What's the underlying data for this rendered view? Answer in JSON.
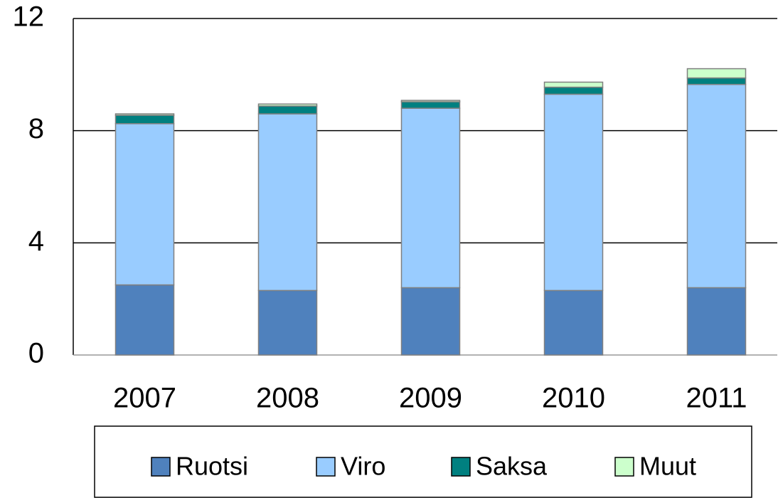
{
  "chart_data": {
    "type": "stacked_bar",
    "categories": [
      "2007",
      "2008",
      "2009",
      "2010",
      "2011"
    ],
    "series": [
      {
        "name": "Ruotsi",
        "color": "#4f81bd",
        "values": [
          2.5,
          2.3,
          2.4,
          2.3,
          2.4
        ]
      },
      {
        "name": "Viro",
        "color": "#99ccff",
        "values": [
          5.75,
          6.3,
          6.4,
          7.0,
          7.25
        ]
      },
      {
        "name": "Saksa",
        "color": "#008080",
        "values": [
          0.3,
          0.28,
          0.23,
          0.25,
          0.23
        ]
      },
      {
        "name": "Muut",
        "color": "#ccffcc",
        "values": [
          0.05,
          0.07,
          0.05,
          0.18,
          0.33
        ]
      }
    ],
    "ylim": [
      0,
      12
    ],
    "yticks": [
      0,
      4,
      8,
      12
    ],
    "grid": true,
    "legend": "bottom"
  }
}
